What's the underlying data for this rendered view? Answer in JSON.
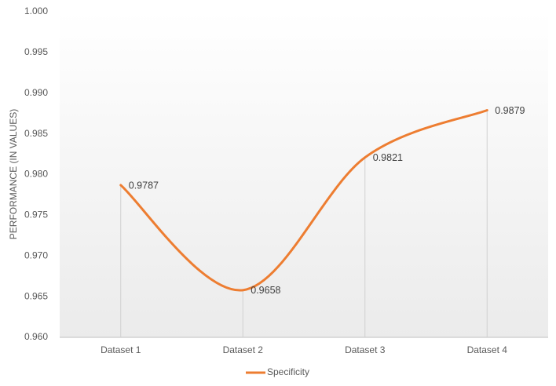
{
  "chart_data": {
    "type": "line",
    "y_label": "PERFORMANCE (IN VALUES)",
    "categories": [
      "Dataset 1",
      "Dataset 2",
      "Dataset 3",
      "Dataset 4"
    ],
    "series": [
      {
        "name": "Specificity",
        "color": "#ed7d31",
        "values": [
          0.9787,
          0.9658,
          0.9821,
          0.9879
        ]
      }
    ],
    "ylim": [
      0.96,
      1.0
    ],
    "yticks": [
      {
        "value": 0.96,
        "label": "0.960"
      },
      0.965,
      {
        "value": 0.97,
        "label": "0.970"
      },
      0.975,
      {
        "value": 0.98,
        "label": "0.980"
      },
      0.985,
      {
        "value": 0.99,
        "label": "0.990"
      },
      0.995,
      {
        "value": 1.0,
        "label": "1.000"
      }
    ],
    "smooth": true,
    "drop_lines": true,
    "data_labels": true,
    "legend": "bottom"
  }
}
